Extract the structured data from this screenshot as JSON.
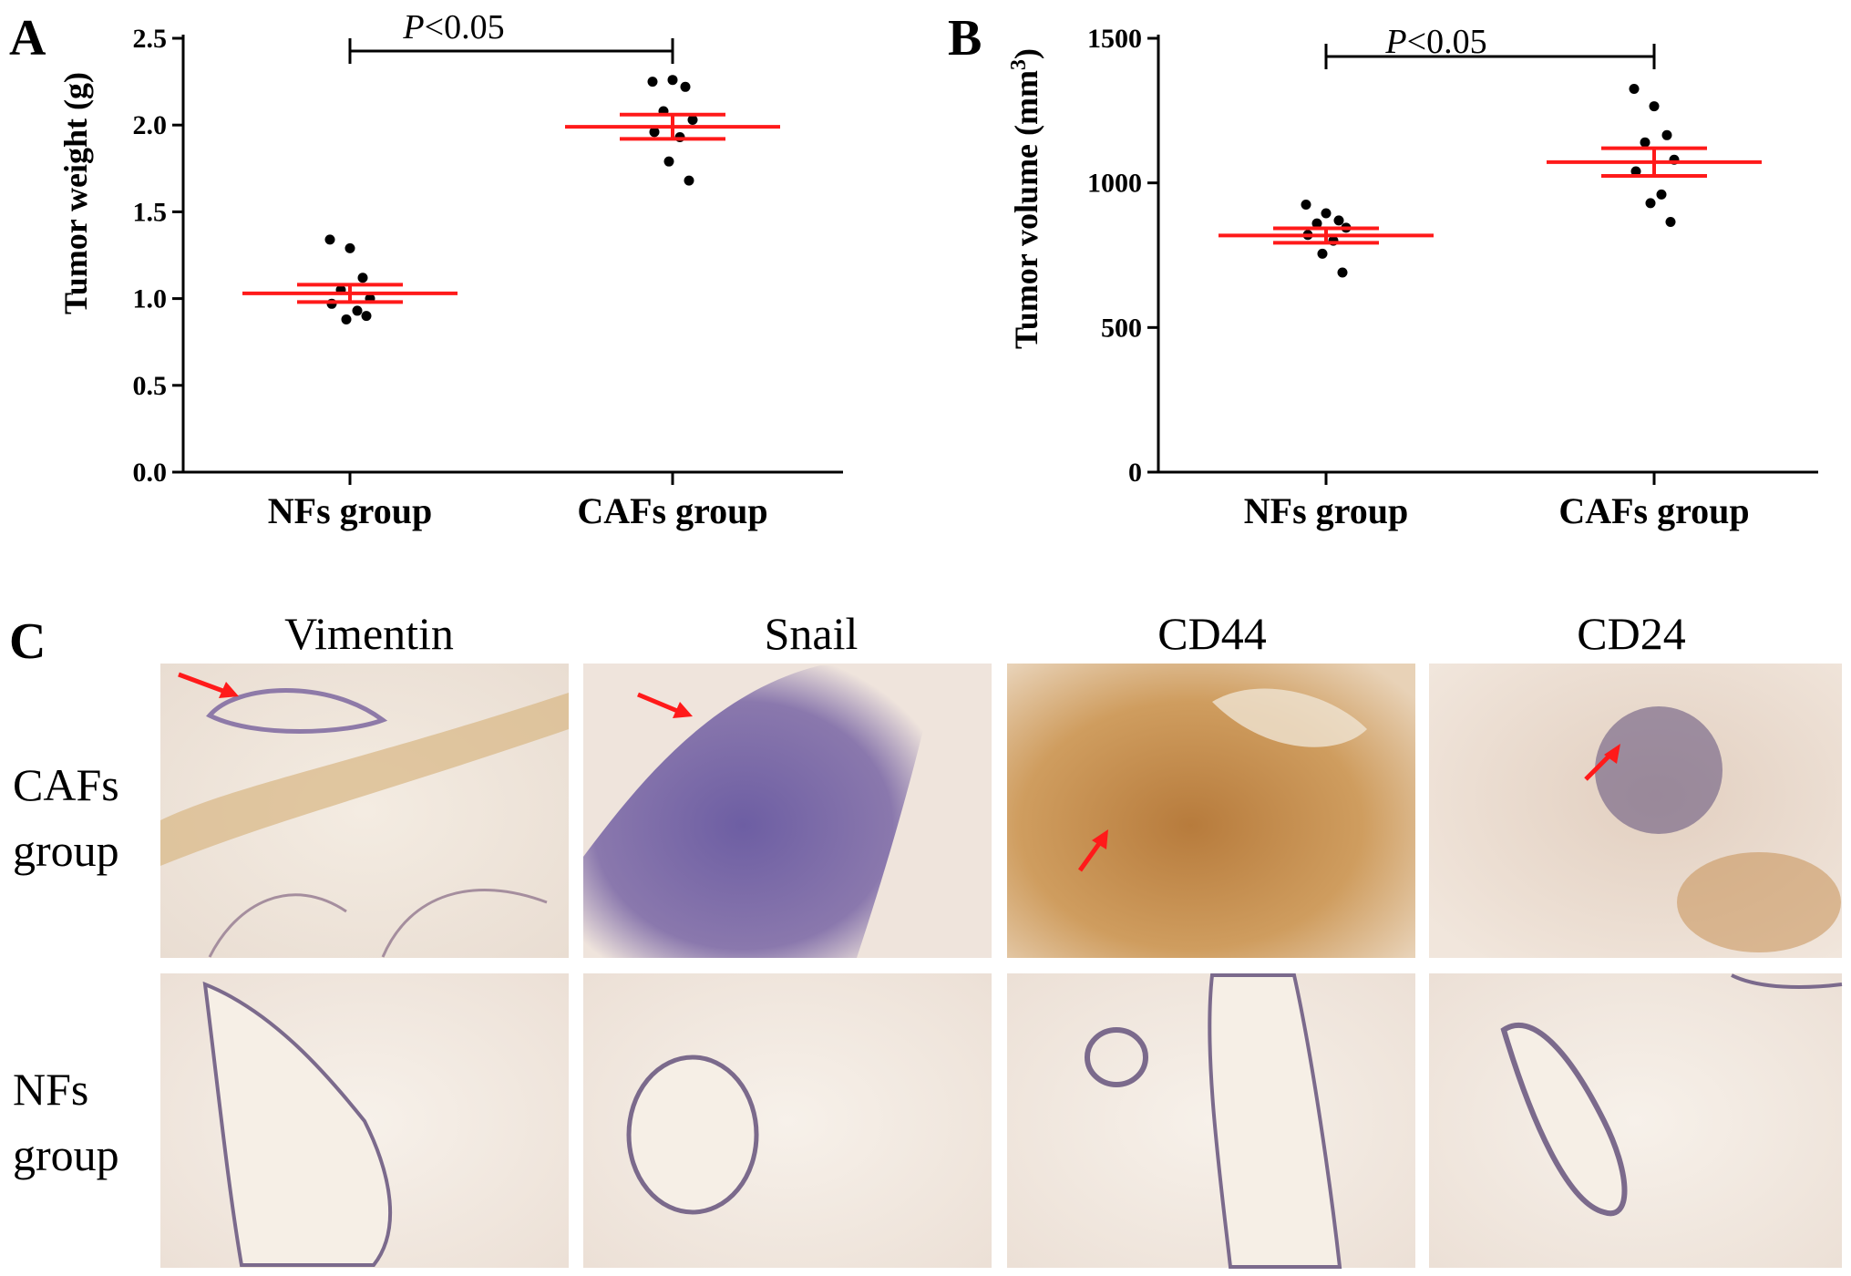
{
  "panels": {
    "a": "A",
    "b": "B",
    "c": "C"
  },
  "colors": {
    "mean_bar": "#ff1a1a",
    "points": "#000000",
    "axis": "#000000",
    "arrow": "#ff1a1a"
  },
  "chart_data": [
    {
      "type": "scatter",
      "panel": "A",
      "categories": [
        "NFs group",
        "CAFs group"
      ],
      "ylabel": "Tumor weight (g)",
      "ylim": [
        0,
        2.5
      ],
      "yticks": [
        "0.0",
        "0.5",
        "1.0",
        "1.5",
        "2.0",
        "2.5"
      ],
      "significance": "P<0.05",
      "series": [
        {
          "category": "NFs group",
          "values": [
            1.34,
            1.29,
            1.12,
            1.05,
            1.0,
            0.97,
            0.93,
            0.88,
            0.9
          ],
          "mean": 1.03,
          "sem": 0.05
        },
        {
          "category": "CAFs group",
          "values": [
            2.25,
            2.26,
            2.22,
            2.08,
            2.03,
            1.96,
            1.93,
            1.79,
            1.68
          ],
          "mean": 1.99,
          "sem": 0.07
        }
      ]
    },
    {
      "type": "scatter",
      "panel": "B",
      "categories": [
        "NFs group",
        "CAFs group"
      ],
      "ylabel": "Tumor volume (mm3)",
      "ylim": [
        0,
        1500
      ],
      "yticks": [
        "0",
        "500",
        "1000",
        "1500"
      ],
      "significance": "P<0.05",
      "series": [
        {
          "category": "NFs group",
          "values": [
            925,
            895,
            870,
            860,
            845,
            820,
            800,
            755,
            690
          ],
          "mean": 818,
          "sem": 25
        },
        {
          "category": "CAFs group",
          "values": [
            1325,
            1265,
            1165,
            1140,
            1080,
            1040,
            960,
            930,
            865
          ],
          "mean": 1072,
          "sem": 48
        }
      ]
    }
  ],
  "ihc": {
    "columns": [
      "Vimentin",
      "Snail",
      "CD44",
      "CD24"
    ],
    "rows": [
      {
        "line1": "CAFs",
        "line2": "group"
      },
      {
        "line1": "NFs",
        "line2": "group"
      }
    ]
  }
}
